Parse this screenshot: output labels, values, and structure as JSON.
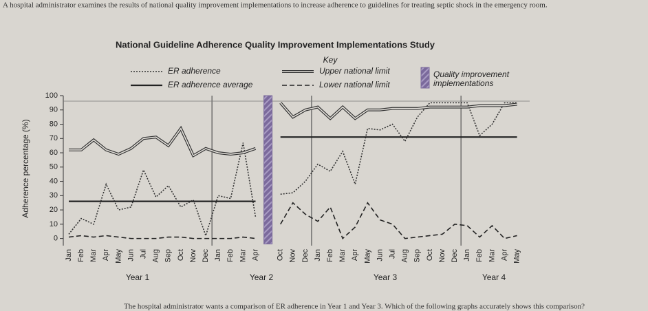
{
  "question_intro": "A hospital administrator examines the results of national quality improvement implementations to increase adherence to guidelines for treating septic shock in the emergency room.",
  "question_prompt": "The hospital administrator wants a comparison of ER adherence in Year 1 and Year 3. Which of the following graphs accurately shows this comparison?",
  "chart_data": {
    "type": "line",
    "title": "National Guideline Adherence Quality Improvement Implementations Study",
    "legend_title": "Key",
    "y_label": "Adherence percentage (%)",
    "categories": [
      "Jan",
      "Feb",
      "Mar",
      "Apr",
      "May",
      "Jun",
      "Jul",
      "Aug",
      "Sep",
      "Oct",
      "Nov",
      "Dec",
      "Jan",
      "Feb",
      "Mar",
      "Apr",
      null,
      "Oct",
      "Nov",
      "Dec",
      "Jan",
      "Feb",
      "Mar",
      "Apr",
      "May",
      "Jun",
      "Jul",
      "Aug",
      "Sep",
      "Oct",
      "Nov",
      "Dec",
      "Jan",
      "Feb",
      "Mar",
      "Apr",
      "May"
    ],
    "year_labels": [
      "Year 1",
      "Year 2",
      "Year 3",
      "Year 4"
    ],
    "ylim": [
      -5,
      100
    ],
    "yticks": [
      0,
      10,
      20,
      30,
      40,
      50,
      60,
      70,
      80,
      90,
      100
    ],
    "grid": false,
    "series": [
      {
        "name": "ER adherence",
        "style": "dotted",
        "color": "#333333",
        "values": [
          3,
          14,
          10,
          38,
          20,
          22,
          48,
          29,
          37,
          22,
          27,
          2,
          30,
          28,
          67,
          15,
          null,
          31,
          32,
          40,
          52,
          47,
          61,
          38,
          77,
          76,
          80,
          68,
          85,
          95,
          95,
          95,
          95,
          72,
          80,
          95,
          95
        ]
      },
      {
        "name": "ER adherence average",
        "style": "solid",
        "color": "#222222",
        "values": [
          26,
          26,
          26,
          26,
          26,
          26,
          26,
          26,
          26,
          26,
          26,
          26,
          26,
          26,
          26,
          26,
          null,
          71,
          71,
          71,
          71,
          71,
          71,
          71,
          71,
          71,
          71,
          71,
          71,
          71,
          71,
          71,
          71,
          71,
          71,
          71,
          71
        ]
      },
      {
        "name": "Upper national limit",
        "style": "double",
        "color": "#333333",
        "values": [
          62,
          62,
          69,
          62,
          59,
          63,
          70,
          71,
          65,
          77,
          58,
          63,
          60,
          59,
          60,
          63,
          null,
          95,
          85,
          90,
          92,
          84,
          92,
          84,
          90,
          90,
          91,
          91,
          91,
          92,
          92,
          92,
          92,
          93,
          93,
          93,
          94
        ]
      },
      {
        "name": "Lower national limit",
        "style": "dashed",
        "color": "#222222",
        "values": [
          1,
          2,
          1,
          2,
          1,
          0,
          0,
          0,
          1,
          1,
          0,
          0,
          0,
          0,
          1,
          0,
          null,
          10,
          25,
          17,
          12,
          22,
          0,
          8,
          25,
          13,
          10,
          0,
          1,
          2,
          3,
          10,
          9,
          1,
          9,
          0,
          2
        ]
      },
      {
        "name": "Quality improvement implementations",
        "style": "bar",
        "color": "#7b6a9c",
        "values": [
          null,
          null,
          null,
          null,
          null,
          null,
          null,
          null,
          null,
          null,
          null,
          null,
          null,
          null,
          null,
          null,
          100,
          null,
          null,
          null,
          null,
          null,
          null,
          null,
          null,
          null,
          null,
          null,
          null,
          null,
          null,
          null,
          null,
          null,
          null,
          null,
          null
        ]
      }
    ]
  }
}
